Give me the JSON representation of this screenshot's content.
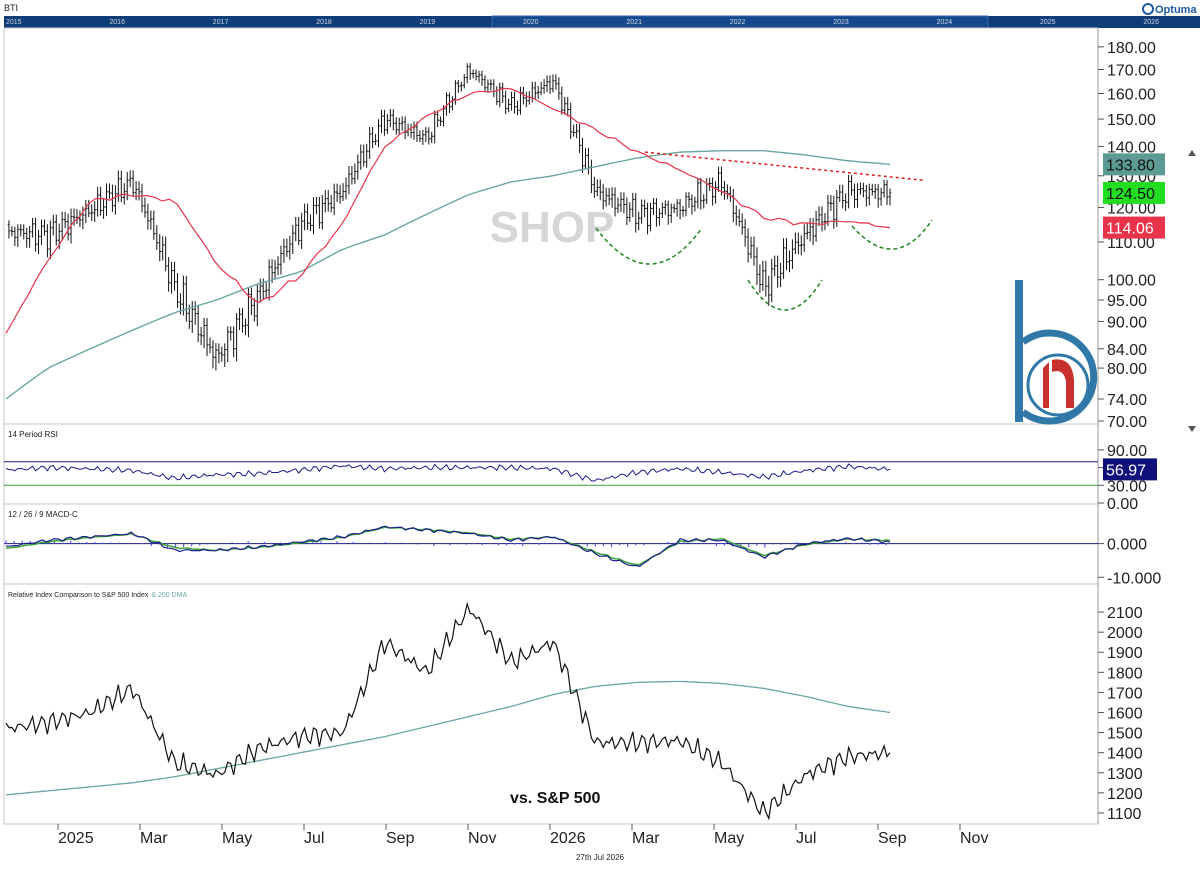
{
  "header": {
    "symbol": "BTI",
    "brand": "Optuma",
    "nav_years": [
      "2015",
      "2016",
      "2017",
      "2018",
      "2019",
      "2020",
      "2021",
      "2022",
      "2023",
      "2024",
      "2025",
      "2026"
    ]
  },
  "footer": {
    "date": "27th Jul 2026"
  },
  "colors": {
    "price": "#111111",
    "ma_red": "#e8334a",
    "ma_teal": "#6aa7a3",
    "resistance": "#e02020",
    "arcs": "#2a8a2a",
    "rsi_line": "#1c1c8c",
    "macd_line": "#1c1c8c",
    "signal_line": "#35a035",
    "histogram": "#5a5ae0",
    "badge_teal": "#5c9b94",
    "badge_green": "#22dd22",
    "badge_red": "#e8334a",
    "badge_navy": "#10107a",
    "watermark": "#d6d6d6",
    "logo": "#2f78a8",
    "logo_red": "#c8322d"
  },
  "chart_data": [
    {
      "type": "line",
      "name": "price-panel",
      "watermark": "SHOP",
      "y_scale": "log",
      "ylim": [
        70,
        185
      ],
      "y_ticks": [
        "180.00",
        "170.00",
        "160.00",
        "150.00",
        "140.00",
        "130.00",
        "120.00",
        "110.00",
        "100.00",
        "95.00",
        "90.00",
        "84.00",
        "80.00",
        "74.00",
        "70.00"
      ],
      "x": [
        "2024-11",
        "2024-12",
        "2025-01",
        "2025-02",
        "2025-03",
        "2025-04",
        "2025-05",
        "2025-06",
        "2025-07",
        "2025-08",
        "2025-09",
        "2025-10",
        "2025-11",
        "2025-12",
        "2026-01",
        "2026-02",
        "2026-03",
        "2026-04",
        "2026-05",
        "2026-06",
        "2026-07",
        "2026-07-27"
      ],
      "series": [
        {
          "values": [
            113,
            112,
            119,
            128,
            98,
            82,
            96,
            115,
            125,
            150,
            143,
            170,
            155,
            165,
            125,
            118,
            120,
            128,
            98,
            112,
            125,
            124.5
          ]
        },
        {
          "values": [
            87,
            105,
            122,
            124,
            122,
            104,
            94,
            101,
            115,
            140,
            151,
            160,
            162,
            154,
            146,
            138,
            132,
            125,
            117,
            115,
            116,
            114.06
          ]
        },
        {
          "values": [
            74,
            80,
            84,
            88,
            92,
            95,
            99,
            102,
            108,
            112,
            118,
            124,
            128,
            130,
            133,
            136,
            138,
            138.5,
            138.5,
            137,
            135,
            133.8
          ]
        }
      ],
      "last_values": [
        "133.80",
        "124.50",
        "114.06"
      ],
      "annotations": [
        "resistance line",
        "left shoulder arc",
        "head arc",
        "right shoulder arc"
      ]
    },
    {
      "type": "line",
      "name": "rsi-panel",
      "title": "14 Period RSI",
      "ylim": [
        0,
        100
      ],
      "y_ticks": [
        "90.00",
        "60.00",
        "30.00",
        "0.00"
      ],
      "levels": [
        70,
        30
      ],
      "series": [
        {
          "values": [
            56,
            60,
            58,
            55,
            42,
            48,
            50,
            56,
            63,
            58,
            60,
            60,
            60,
            58,
            38,
            52,
            58,
            52,
            44,
            55,
            62,
            56.97
          ]
        }
      ],
      "last_value": "56.97"
    },
    {
      "type": "line",
      "name": "macd-panel",
      "title": "12 / 26 / 9 MACD-C",
      "ylim": [
        -12,
        7
      ],
      "y_ticks": [
        "0.000",
        "-10.000"
      ],
      "series": [
        {
          "values": [
            -1,
            1,
            2,
            3,
            -2,
            -2,
            -1,
            0.5,
            2,
            5,
            4,
            3,
            1,
            2,
            -3,
            -7,
            1,
            1,
            -4,
            0,
            1.5,
            0.5
          ]
        },
        {
          "values": [
            -1.5,
            0.5,
            1.8,
            2.8,
            -1.2,
            -2,
            -1.2,
            0.2,
            1.8,
            4.8,
            4.2,
            3.2,
            1.3,
            2,
            -2.5,
            -6.5,
            0.5,
            1.5,
            -3.5,
            -0.3,
            1.3,
            1
          ]
        }
      ]
    },
    {
      "type": "line",
      "name": "relative-panel",
      "title": "Relative Index Comparison to S&P 500 Index",
      "title_suffix": "& 200 DMA",
      "annotation": "vs. S&P 500",
      "ylim": [
        1050,
        2180
      ],
      "y_ticks": [
        "2100",
        "2000",
        "1900",
        "1800",
        "1700",
        "1600",
        "1500",
        "1400",
        "1300",
        "1200",
        "1100"
      ],
      "series": [
        {
          "values": [
            1520,
            1550,
            1600,
            1720,
            1350,
            1290,
            1420,
            1480,
            1500,
            1950,
            1800,
            2120,
            1850,
            1950,
            1450,
            1450,
            1460,
            1350,
            1100,
            1290,
            1380,
            1400
          ]
        },
        {
          "values": [
            1190,
            1210,
            1230,
            1250,
            1280,
            1320,
            1360,
            1400,
            1440,
            1480,
            1530,
            1580,
            1630,
            1690,
            1730,
            1750,
            1755,
            1745,
            1720,
            1680,
            1630,
            1600
          ]
        }
      ]
    }
  ],
  "x_axis": {
    "labels": [
      "2025",
      "Mar",
      "May",
      "Jul",
      "Sep",
      "Nov",
      "2026",
      "Mar",
      "May",
      "Jul",
      "Sep",
      "Nov"
    ]
  }
}
